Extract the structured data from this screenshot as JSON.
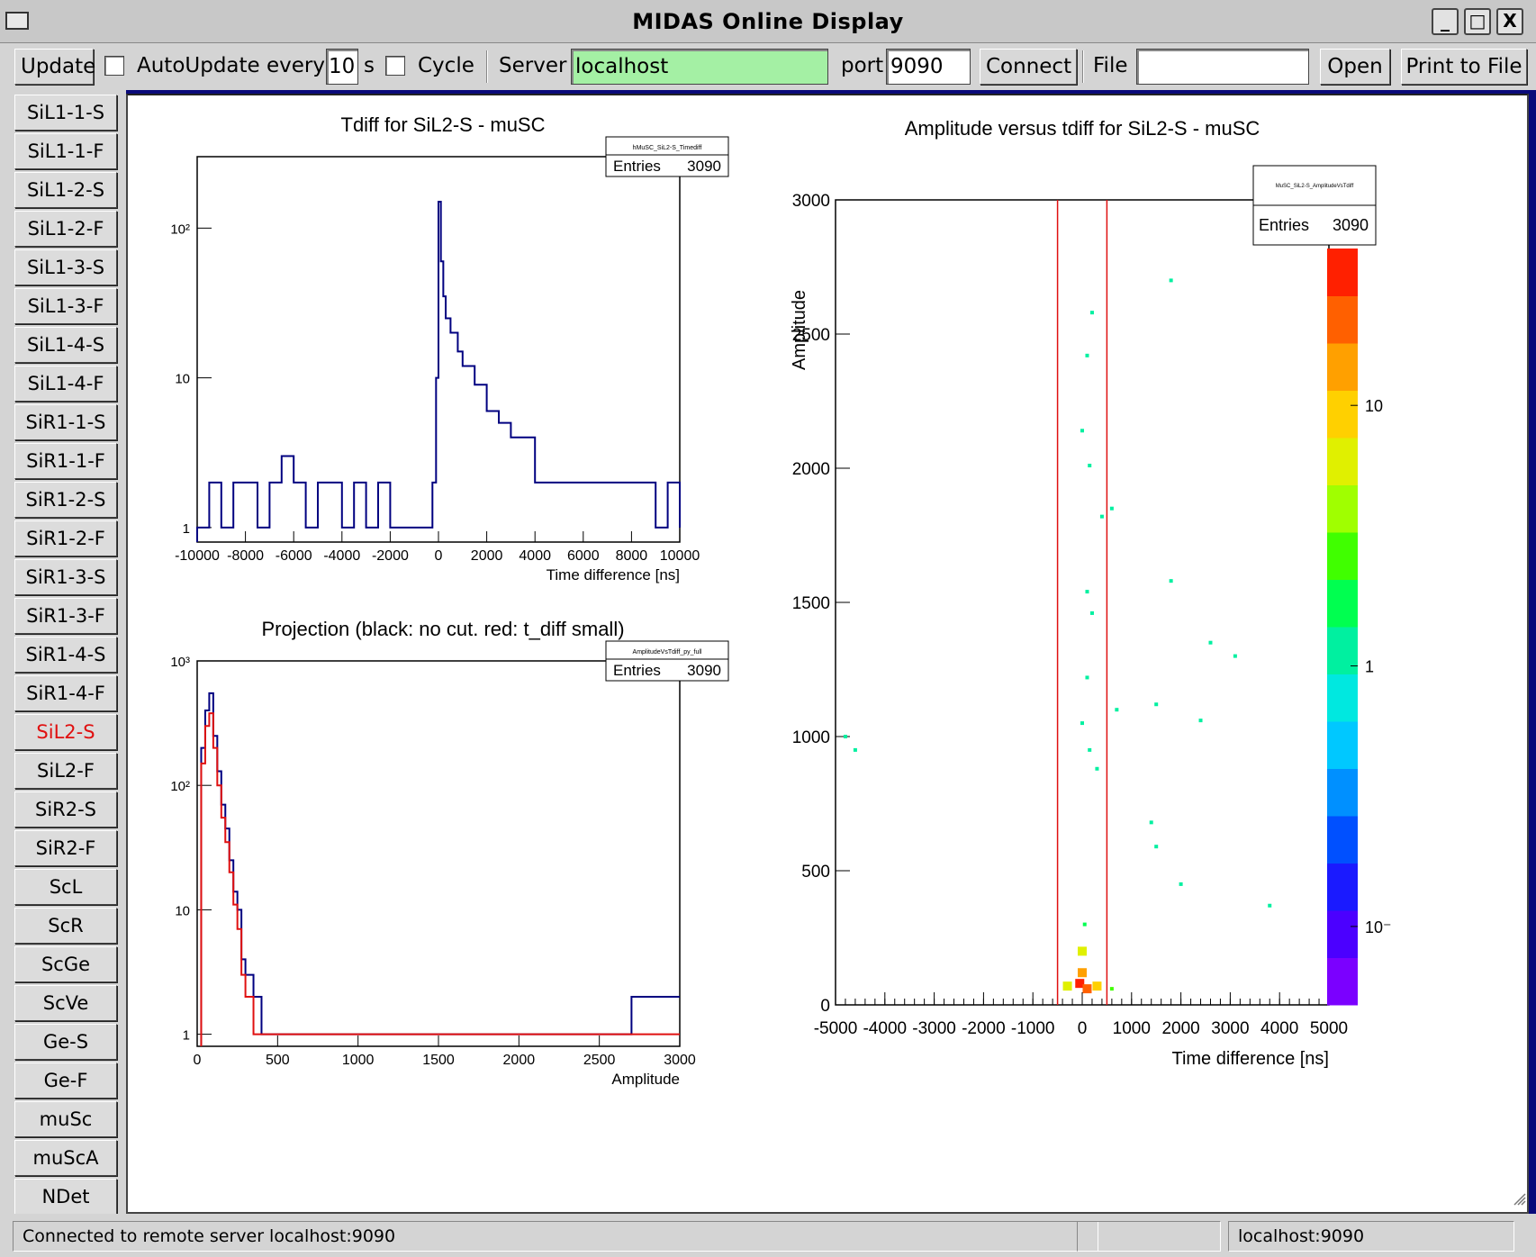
{
  "window": {
    "title": "MIDAS Online Display",
    "controls": [
      "_",
      "□",
      "X"
    ]
  },
  "toolbar": {
    "update_label": "Update",
    "autoupdate_label": "AutoUpdate every",
    "autoupdate_value": "10",
    "seconds_label": "s",
    "cycle_label": "Cycle",
    "server_label": "Server",
    "server_value": "localhost",
    "port_label": "port",
    "port_value": "9090",
    "connect_label": "Connect",
    "file_label": "File",
    "file_value": "",
    "open_label": "Open",
    "print_label": "Print to File",
    "server_color": "#a4f0a4"
  },
  "sidebar": {
    "items": [
      "SiL1-1-S",
      "SiL1-1-F",
      "SiL1-2-S",
      "SiL1-2-F",
      "SiL1-3-S",
      "SiL1-3-F",
      "SiL1-4-S",
      "SiL1-4-F",
      "SiR1-1-S",
      "SiR1-1-F",
      "SiR1-2-S",
      "SiR1-2-F",
      "SiR1-3-S",
      "SiR1-3-F",
      "SiR1-4-S",
      "SiR1-4-F",
      "SiL2-S",
      "SiL2-F",
      "SiR2-S",
      "SiR2-F",
      "ScL",
      "ScR",
      "ScGe",
      "ScVe",
      "Ge-S",
      "Ge-F",
      "muSc",
      "muScA",
      "NDet"
    ],
    "active": "SiL2-S",
    "active_color": "#e01010"
  },
  "status": {
    "message": "Connected to remote server localhost:9090",
    "middle": "",
    "host": "localhost:9090"
  },
  "chart_data": [
    {
      "type": "histogram",
      "title": "Tdiff for SiL2-S - muSC",
      "stats_name": "hMuSC_SiL2-S_Timediff",
      "entries_label": "Entries",
      "entries": "3090",
      "xlabel": "Time difference [ns]",
      "ylabel": "",
      "xlim": [
        -10000,
        10000
      ],
      "ylim": [
        0.8,
        300
      ],
      "log_y": true,
      "x_ticks": [
        "-10000",
        "-8000",
        "-6000",
        "-4000",
        "-2000",
        "0",
        "2000",
        "4000",
        "6000",
        "8000",
        "10000"
      ],
      "y_ticks": [
        "1",
        "10",
        "10²"
      ],
      "series": [
        {
          "color": "#000080",
          "x": [
            -10000,
            -9500,
            -9000,
            -8500,
            -8000,
            -7500,
            -7000,
            -6500,
            -6000,
            -5500,
            -5000,
            -4500,
            -4000,
            -3500,
            -3000,
            -2500,
            -2000,
            -1500,
            -1000,
            -500,
            -250,
            -100,
            0,
            100,
            200,
            300,
            500,
            800,
            1000,
            1500,
            2000,
            2500,
            3000,
            3500,
            4000,
            4500,
            5000,
            5500,
            6000,
            6500,
            7000,
            7500,
            8000,
            8500,
            9000,
            9500,
            10000
          ],
          "y": [
            1,
            2,
            1,
            2,
            2,
            1,
            2,
            3,
            2,
            1,
            2,
            2,
            1,
            2,
            1,
            2,
            1,
            1,
            1,
            1,
            2,
            10,
            150,
            60,
            35,
            25,
            20,
            15,
            12,
            9,
            6,
            5,
            4,
            4,
            2,
            2,
            2,
            2,
            2,
            2,
            2,
            2,
            2,
            2,
            1,
            2,
            1
          ]
        }
      ]
    },
    {
      "type": "histogram",
      "title": "Projection (black: no cut. red: t_diff small)",
      "stats_name": "AmplitudeVsTdiff_py_full",
      "entries_label": "Entries",
      "entries": "3090",
      "xlabel": "Amplitude",
      "ylabel": "",
      "xlim": [
        0,
        3000
      ],
      "ylim": [
        0.8,
        1000
      ],
      "log_y": true,
      "x_ticks": [
        "0",
        "500",
        "1000",
        "1500",
        "2000",
        "2500",
        "3000"
      ],
      "y_ticks": [
        "1",
        "10",
        "10²",
        "10³"
      ],
      "series": [
        {
          "name": "no cut",
          "color": "#000080",
          "x": [
            25,
            50,
            75,
            100,
            125,
            150,
            175,
            200,
            225,
            250,
            275,
            300,
            350,
            400,
            450,
            600,
            800,
            1000,
            1200,
            1500,
            1800,
            2000,
            2400,
            2700
          ],
          "y": [
            200,
            400,
            550,
            250,
            130,
            70,
            45,
            25,
            14,
            10,
            4,
            3,
            2,
            1,
            1,
            1,
            1,
            1,
            1,
            1,
            1,
            1,
            1,
            2
          ]
        },
        {
          "name": "t_diff small",
          "color": "#e01010",
          "x": [
            25,
            50,
            75,
            100,
            125,
            150,
            175,
            200,
            225,
            250,
            275,
            300,
            350,
            400,
            450,
            600,
            800,
            1000,
            1200,
            1500,
            1800,
            2000,
            2400,
            2600
          ],
          "y": [
            150,
            300,
            380,
            200,
            100,
            55,
            35,
            20,
            11,
            7,
            3,
            2,
            1,
            1,
            1,
            1,
            1,
            1,
            1,
            1,
            1,
            1,
            1,
            1
          ]
        }
      ]
    },
    {
      "type": "heatmap",
      "title": "Amplitude versus tdiff for SiL2-S - muSC",
      "stats_name": "MuSC_SiL2-S_AmplitudeVsTdiff",
      "entries_label": "Entries",
      "entries": "3090",
      "xlabel": "Time difference [ns]",
      "ylabel": "Amplitude",
      "xlim": [
        -5000,
        5000
      ],
      "ylim": [
        0,
        3000
      ],
      "x_ticks": [
        "-5000",
        "-4000",
        "-3000",
        "-2000",
        "-1000",
        "0",
        "1000",
        "2000",
        "3000",
        "4000",
        "5000"
      ],
      "y_ticks": [
        "0",
        "500",
        "1000",
        "1500",
        "2000",
        "2500",
        "3000"
      ],
      "cut_lines_x": [
        -500,
        500
      ],
      "colorbar_ticks": [
        "10⁻",
        "1",
        "10"
      ],
      "colorbar_range": [
        0.05,
        40
      ],
      "points": [
        {
          "x": -4800,
          "y": 1000,
          "z": 1
        },
        {
          "x": -4600,
          "y": 950,
          "z": 1
        },
        {
          "x": 1800,
          "y": 2700,
          "z": 1
        },
        {
          "x": 200,
          "y": 2580,
          "z": 1
        },
        {
          "x": 100,
          "y": 2420,
          "z": 1
        },
        {
          "x": 0,
          "y": 2140,
          "z": 1
        },
        {
          "x": 150,
          "y": 2010,
          "z": 1
        },
        {
          "x": 600,
          "y": 1850,
          "z": 1
        },
        {
          "x": 400,
          "y": 1820,
          "z": 1
        },
        {
          "x": 100,
          "y": 1540,
          "z": 1
        },
        {
          "x": 200,
          "y": 1460,
          "z": 1
        },
        {
          "x": 1800,
          "y": 1580,
          "z": 1
        },
        {
          "x": 2600,
          "y": 1350,
          "z": 1
        },
        {
          "x": 3100,
          "y": 1300,
          "z": 1
        },
        {
          "x": 100,
          "y": 1220,
          "z": 1
        },
        {
          "x": 700,
          "y": 1100,
          "z": 1
        },
        {
          "x": 2400,
          "y": 1060,
          "z": 1
        },
        {
          "x": 1500,
          "y": 1120,
          "z": 1
        },
        {
          "x": 0,
          "y": 1050,
          "z": 1
        },
        {
          "x": 150,
          "y": 950,
          "z": 1
        },
        {
          "x": 300,
          "y": 880,
          "z": 1
        },
        {
          "x": 1400,
          "y": 680,
          "z": 1
        },
        {
          "x": 1500,
          "y": 590,
          "z": 1
        },
        {
          "x": 2000,
          "y": 450,
          "z": 1
        },
        {
          "x": 3800,
          "y": 370,
          "z": 1
        },
        {
          "x": 50,
          "y": 300,
          "z": 2
        },
        {
          "x": 0,
          "y": 200,
          "z": 5
        },
        {
          "x": 0,
          "y": 120,
          "z": 12
        },
        {
          "x": -50,
          "y": 80,
          "z": 30
        },
        {
          "x": 100,
          "y": 60,
          "z": 20
        },
        {
          "x": 300,
          "y": 70,
          "z": 8
        },
        {
          "x": -300,
          "y": 70,
          "z": 5
        },
        {
          "x": 600,
          "y": 60,
          "z": 3
        }
      ]
    }
  ]
}
